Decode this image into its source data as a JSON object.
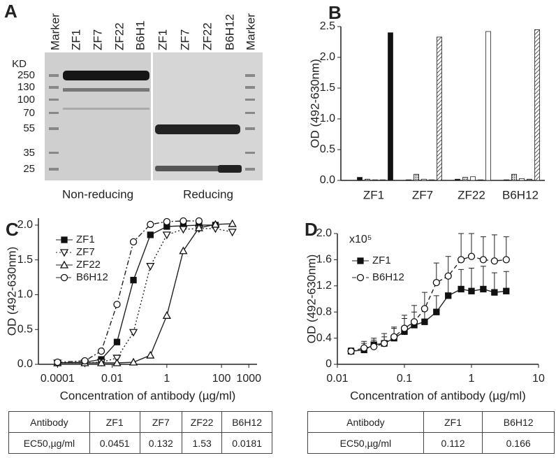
{
  "panel_a": {
    "label": "A",
    "unit": "KD",
    "lanes_left": [
      "Marker",
      "ZF1",
      "ZF7",
      "ZF22",
      "B6H1"
    ],
    "lanes_right": [
      "ZF1",
      "ZF7",
      "ZF22",
      "B6H12",
      "Marker"
    ],
    "markers": [
      "250",
      "130",
      "100",
      "70",
      "55",
      "35",
      "25"
    ],
    "captions": [
      "Non-reducing",
      "Reducing"
    ]
  },
  "chart_data": [
    {
      "panel": "B",
      "type": "bar",
      "ylabel": "OD (492-630nm)",
      "categories": [
        "ZF1",
        "ZF7",
        "ZF22",
        "B6H12"
      ],
      "series": [
        {
          "color": "#111111",
          "values": [
            0.05,
            0.01,
            0.02,
            0.01
          ]
        },
        {
          "color": "url(#dots)",
          "values": [
            0.02,
            0.1,
            0.05,
            0.1
          ]
        },
        {
          "color": "#ffffff",
          "values": [
            0.01,
            0.02,
            0.06,
            0.03
          ]
        },
        {
          "color": "#888888",
          "values": [
            0.01,
            0.01,
            0.01,
            0.02
          ]
        },
        {
          "colors": [
            "#111111",
            "url(#hatch)",
            "#ffffff",
            "url(#hatch)"
          ],
          "values": [
            2.4,
            2.33,
            2.42,
            2.45
          ]
        }
      ],
      "ylim": [
        0,
        2.5
      ],
      "yticks": [
        {
          "value": 0,
          "label": "0.0"
        },
        0.5,
        {
          "value": 1,
          "label": "1.0"
        },
        1.5,
        {
          "value": 2,
          "label": "2.0"
        },
        2.5
      ]
    },
    {
      "panel": "C",
      "type": "line",
      "xscale": "log",
      "xlabel": "Concentration of antibody (µg/ml)",
      "ylabel": "OD (492-630nm)",
      "x": [
        0.0001,
        0.001,
        0.004,
        0.015,
        0.06,
        0.25,
        1,
        4,
        15,
        60,
        250
      ],
      "series": [
        {
          "name": "ZF1",
          "color": "#111111",
          "marker": "square",
          "dash": "solid",
          "values": [
            0.02,
            0.03,
            0.07,
            0.32,
            1.21,
            1.86,
            1.98,
            1.99,
            2.0,
            2.0,
            null
          ]
        },
        {
          "name": "ZF7",
          "color": "#111111",
          "marker": "tri-down",
          "dash": "dotted",
          "values": [
            0.02,
            0.02,
            0.03,
            0.09,
            0.46,
            1.41,
            1.86,
            1.94,
            1.95,
            1.95,
            1.9
          ]
        },
        {
          "name": "ZF22",
          "color": "#111111",
          "marker": "tri-up",
          "dash": "solid",
          "values": [
            0.02,
            0.02,
            0.02,
            0.02,
            0.03,
            0.13,
            0.7,
            1.63,
            1.96,
            2.01,
            2.02
          ]
        },
        {
          "name": "B6H12",
          "color": "#111111",
          "marker": "circle",
          "dash": "dash-dot",
          "values": [
            0.03,
            0.05,
            0.19,
            0.86,
            1.76,
            2.01,
            2.05,
            2.06,
            2.06,
            null,
            null
          ]
        }
      ],
      "xlim": [
        2e-05,
        2000
      ],
      "xticks": [
        0.0001,
        0.01,
        1,
        100,
        1000
      ],
      "ylim": [
        0,
        2.1
      ],
      "yticks": [
        {
          "value": 0,
          "label": "0.0"
        },
        0.5,
        {
          "value": 1,
          "label": "1.0"
        },
        1.5,
        {
          "value": 2,
          "label": "2.0"
        }
      ]
    },
    {
      "panel": "D",
      "type": "line",
      "xscale": "log",
      "annotation": "x10⁵",
      "xlabel": "Concentration of antibody (µg/ml)",
      "ylabel": "OD (492-630nm)",
      "x": [
        0.016,
        0.025,
        0.035,
        0.05,
        0.07,
        0.1,
        0.14,
        0.2,
        0.3,
        0.45,
        0.7,
        1,
        1.5,
        2.2,
        3.3
      ],
      "series": [
        {
          "name": "ZF1",
          "color": "#111111",
          "marker": "square",
          "dash": "solid",
          "values": [
            0.2,
            0.22,
            0.3,
            0.32,
            0.4,
            0.5,
            0.6,
            0.65,
            0.8,
            1.05,
            1.15,
            1.12,
            1.15,
            1.1,
            1.12
          ],
          "errors": [
            0.05,
            0.1,
            0.1,
            0.1,
            0.15,
            0.2,
            0.2,
            0.2,
            0.25,
            0.3,
            0.3,
            0.35,
            0.35,
            0.3,
            0.3
          ]
        },
        {
          "name": "B6H12",
          "color": "#111111",
          "marker": "circle",
          "dash": "dashed",
          "values": [
            0.2,
            0.25,
            0.27,
            0.32,
            0.42,
            0.55,
            0.65,
            0.85,
            1.25,
            1.35,
            1.6,
            1.65,
            1.6,
            1.58,
            1.6
          ],
          "errors": [
            0.05,
            0.1,
            0.1,
            0.15,
            0.15,
            0.2,
            0.25,
            0.25,
            0.3,
            0.3,
            0.4,
            0.35,
            0.35,
            0.4,
            0.35
          ]
        }
      ],
      "xlim": [
        0.01,
        10
      ],
      "xticks": [
        0.01,
        0.1,
        1,
        10
      ],
      "ylim": [
        0,
        2.0
      ],
      "yticks": [
        0,
        0.4,
        0.8,
        1.2,
        1.6,
        {
          "value": 2,
          "label": "2.0"
        }
      ]
    }
  ],
  "table_c": {
    "rows": [
      [
        "Antibody",
        "ZF1",
        "ZF7",
        "ZF22",
        "B6H12"
      ],
      [
        "EC50,µg/ml",
        "0.0451",
        "0.132",
        "1.53",
        "0.0181"
      ]
    ]
  },
  "table_d": {
    "rows": [
      [
        "Antibody",
        "ZF1",
        "B6H12"
      ],
      [
        "EC50,µg/ml",
        "0.112",
        "0.166"
      ]
    ]
  }
}
